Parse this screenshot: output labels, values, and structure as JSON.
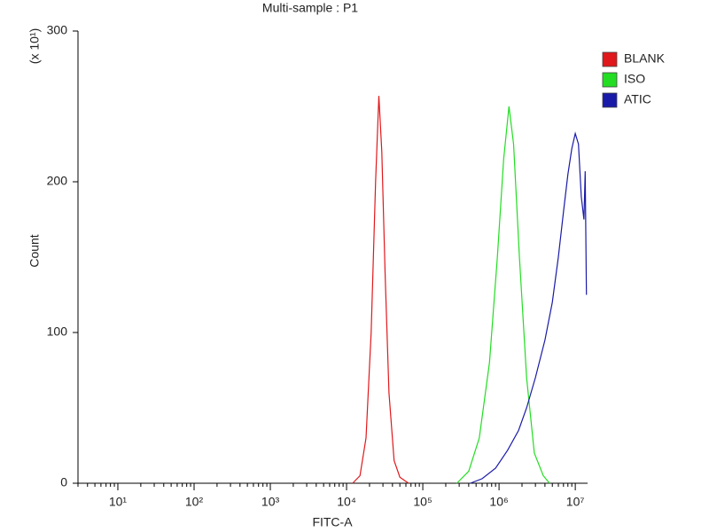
{
  "chart_data": {
    "type": "line",
    "title": "Multi-sample : P1",
    "x_label": "FITC-A",
    "y_label": "Count",
    "y_multiplier": "(x 10¹)",
    "x_scale": "log",
    "xlim": [
      3,
      14500000
    ],
    "ylim": [
      0,
      300
    ],
    "xticks": [
      {
        "value": 10,
        "label": "10¹"
      },
      {
        "value": 100,
        "label": "10²"
      },
      {
        "value": 1000,
        "label": "10³"
      },
      {
        "value": 10000,
        "label": "10⁴"
      },
      {
        "value": 100000,
        "label": "10⁵"
      },
      {
        "value": 1000000,
        "label": "10⁶"
      },
      {
        "value": 10000000,
        "label": "10⁷"
      }
    ],
    "yticks": [
      0,
      100,
      200,
      300
    ],
    "legend_position": "outside-right",
    "series": [
      {
        "name": "BLANK",
        "color": "#e0181b",
        "x": [
          12000,
          15000,
          18000,
          21000,
          24000,
          26500,
          29000,
          32000,
          36000,
          42000,
          50000,
          65000
        ],
        "values": [
          0,
          5,
          30,
          100,
          200,
          257,
          220,
          140,
          60,
          15,
          4,
          0
        ]
      },
      {
        "name": "ISO",
        "color": "#22dd22",
        "x": [
          280000,
          400000,
          550000,
          750000,
          950000,
          1150000,
          1350000,
          1550000,
          1850000,
          2300000,
          2900000,
          3800000,
          4600000
        ],
        "values": [
          0,
          8,
          30,
          80,
          150,
          215,
          250,
          225,
          150,
          70,
          20,
          5,
          0
        ]
      },
      {
        "name": "ATIC",
        "color": "#1a1aa8",
        "x": [
          420000,
          600000,
          900000,
          1300000,
          1800000,
          2300000,
          3000000,
          4000000,
          5000000,
          6000000,
          7000000,
          8000000,
          9000000,
          10000000,
          11000000,
          12000000,
          13000000,
          13500000,
          14000000
        ],
        "values": [
          0,
          3,
          10,
          22,
          35,
          50,
          70,
          95,
          120,
          150,
          180,
          205,
          222,
          232,
          225,
          190,
          175,
          207,
          125
        ]
      }
    ]
  }
}
